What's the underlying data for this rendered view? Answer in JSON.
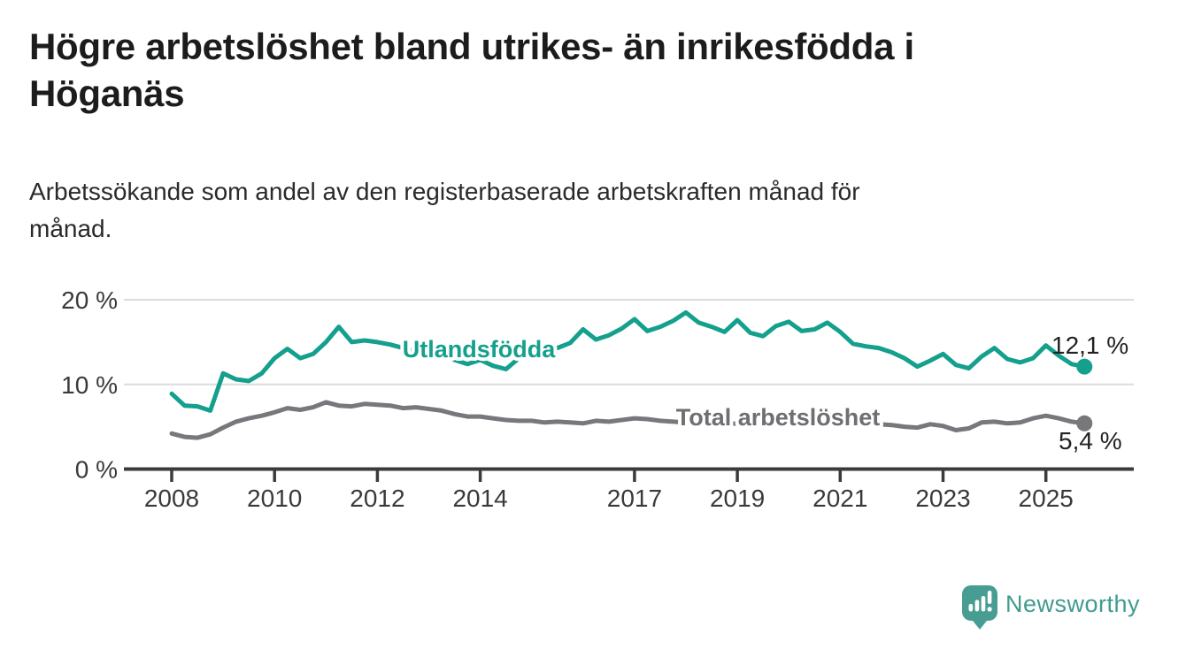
{
  "header": {
    "title_lines": [
      "Högre arbetslöshet bland utrikes- än inrikesfödda i",
      "Höganäs"
    ],
    "subtitle_lines": [
      "Arbetssökande som andel av den registerbaserade arbetskraften månad för",
      "månad."
    ]
  },
  "chart_data": {
    "type": "line",
    "title": "Högre arbetslöshet bland utrikes- än inrikesfödda i Höganäs",
    "subtitle": "Arbetssökande som andel av den registerbaserade arbetskraften månad för månad.",
    "ylabel": "",
    "xlabel": "",
    "ylim": [
      0,
      21.5
    ],
    "xlim": [
      2007.9,
      2026.0
    ],
    "grid": "horizontal",
    "legend_position": "inline-labels",
    "x_start": 2008.0,
    "x_step": 0.25,
    "x_tick_years": [
      2008,
      2010,
      2012,
      2014,
      2017,
      2019,
      2021,
      2023,
      2025
    ],
    "x_tick_labels": [
      "2008",
      "2010",
      "2012",
      "2014",
      "2017",
      "2019",
      "2021",
      "2023",
      "2025"
    ],
    "y_ticks": [
      {
        "value": 20,
        "label": "20 %"
      },
      {
        "value": 10,
        "label": "10 %"
      },
      {
        "value": 0,
        "label": "0 %"
      }
    ],
    "series": [
      {
        "name": "Utlandsfödda",
        "color": "#14a08d",
        "label_color": "#14a08d",
        "end_label": "12,1 %",
        "end_value": 12.1,
        "values": [
          8.9,
          7.5,
          7.4,
          6.9,
          11.3,
          10.6,
          10.4,
          11.3,
          13.1,
          14.2,
          13.1,
          13.6,
          15.0,
          16.8,
          15.0,
          15.2,
          15.0,
          14.7,
          14.3,
          14.0,
          14.9,
          13.9,
          12.9,
          12.4,
          12.9,
          12.2,
          11.8,
          13.1,
          14.1,
          14.5,
          14.3,
          14.9,
          16.5,
          15.3,
          15.8,
          16.6,
          17.7,
          16.3,
          16.8,
          17.5,
          18.5,
          17.3,
          16.8,
          16.2,
          17.6,
          16.1,
          15.7,
          16.9,
          17.4,
          16.3,
          16.5,
          17.3,
          16.2,
          14.8,
          14.5,
          14.3,
          13.8,
          13.1,
          12.1,
          12.8,
          13.6,
          12.3,
          11.9,
          13.3,
          14.3,
          13.0,
          12.6,
          13.1,
          14.6,
          13.4,
          12.4,
          12.1
        ]
      },
      {
        "name": "Total arbetslöshet",
        "color": "#77777c",
        "label_color": "#6e6e73",
        "end_label": "5,4 %",
        "end_value": 5.4,
        "values": [
          4.2,
          3.8,
          3.7,
          4.1,
          4.9,
          5.6,
          6.0,
          6.3,
          6.7,
          7.2,
          7.0,
          7.3,
          7.9,
          7.5,
          7.4,
          7.7,
          7.6,
          7.5,
          7.2,
          7.3,
          7.1,
          6.9,
          6.5,
          6.2,
          6.2,
          6.0,
          5.8,
          5.7,
          5.7,
          5.5,
          5.6,
          5.5,
          5.4,
          5.7,
          5.6,
          5.8,
          6.0,
          5.9,
          5.7,
          5.6,
          5.5,
          5.4,
          5.3,
          5.3,
          5.4,
          5.3,
          5.4,
          5.5,
          5.7,
          6.3,
          6.5,
          6.4,
          6.2,
          5.9,
          5.6,
          5.3,
          5.2,
          5.0,
          4.9,
          5.3,
          5.1,
          4.6,
          4.8,
          5.5,
          5.6,
          5.4,
          5.5,
          6.0,
          6.3,
          6.0,
          5.6,
          5.4
        ]
      }
    ],
    "axis_text_color": "#3a3a3a",
    "axis_line_color": "#3b3b3b",
    "gridline_color": "#dcdcdc",
    "end_label_color": "#222222"
  },
  "branding": {
    "logo_text": "Newsworthy",
    "logo_bubble_color": "#479d92",
    "logo_text_color": "#3f9b90"
  }
}
